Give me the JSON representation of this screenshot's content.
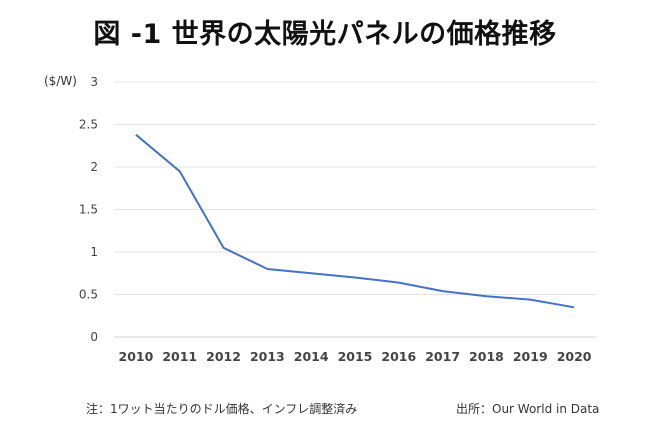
{
  "title": "図 -1 世界の太陽光パネルの価格推移",
  "footnote": "注：1ワット当たりのドル価格、インフレ調整済み",
  "source": "出所：Our World in Data",
  "chart_data": {
    "type": "line",
    "title": "図 -1 世界の太陽光パネルの価格推移",
    "ylabel": "($/W)",
    "xlabel": "",
    "x": [
      "2010",
      "2011",
      "2012",
      "2013",
      "2014",
      "2015",
      "2016",
      "2017",
      "2018",
      "2019",
      "2020"
    ],
    "series": [
      {
        "values": [
          2.38,
          1.95,
          1.05,
          0.8,
          0.75,
          0.7,
          0.64,
          0.54,
          0.48,
          0.44,
          0.35
        ],
        "color": "#4472C4"
      }
    ],
    "ylim": [
      0,
      3
    ],
    "yticks": [
      "0",
      "0.5",
      "1",
      "1.5",
      "2",
      "2.5",
      "3"
    ],
    "grid": true,
    "legend": "none"
  }
}
